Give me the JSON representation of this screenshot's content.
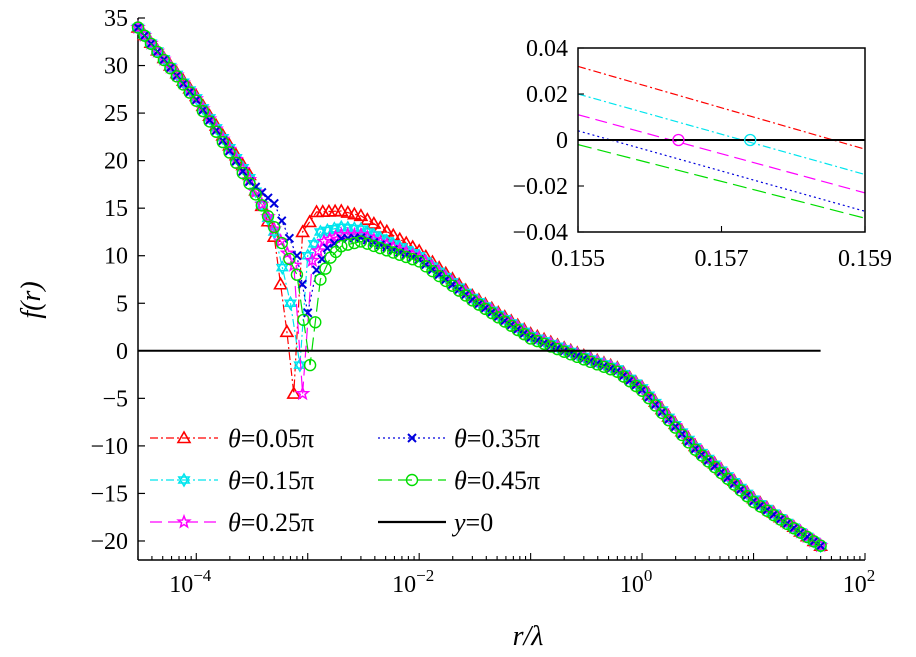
{
  "chart_data": {
    "type": "line",
    "xscale": "log",
    "xlabel": "r/λ",
    "ylabel": "f(r)",
    "xlim": [
      3e-05,
      100
    ],
    "ylim": [
      -22,
      35
    ],
    "xticks": [
      0.0001,
      0.01,
      1,
      100
    ],
    "xtick_labels": [
      "10",
      "10",
      "10",
      "10"
    ],
    "xtick_exps": [
      "−4",
      "−2",
      "0",
      "2"
    ],
    "yticks": [
      35,
      30,
      25,
      20,
      15,
      10,
      5,
      0,
      -5,
      -10,
      -15,
      -20
    ],
    "ytick_labels": [
      "35",
      "30",
      "25",
      "20",
      "15",
      "10",
      "5",
      "0",
      "−5",
      "−10",
      "−15",
      "−20"
    ],
    "grid": false,
    "legend_position": "bottom-left",
    "series": [
      {
        "name": "θ=0.05π",
        "color": "#ff0000",
        "marker": "triangle",
        "dash": "8 3 2 3",
        "x": [
          3e-05,
          0.0001,
          0.0003,
          0.0005,
          0.00065,
          0.00075,
          0.0009,
          0.0012,
          0.002,
          0.003,
          0.01,
          0.03,
          0.1,
          0.2,
          0.3,
          0.6,
          1,
          3,
          10,
          40
        ],
        "y": [
          34,
          26.8,
          18.5,
          12,
          2,
          -4.5,
          12.5,
          14.6,
          14.7,
          14.2,
          10.5,
          5.8,
          1.8,
          0.3,
          -0.5,
          -1.8,
          -3.8,
          -10,
          -15.5,
          -20.5
        ]
      },
      {
        "name": "θ=0.15π",
        "color": "#00e5ee",
        "marker": "star6",
        "dash": "8 3 2 3",
        "x": [
          3e-05,
          0.0001,
          0.0003,
          0.0005,
          0.0007,
          0.00085,
          0.001,
          0.0013,
          0.002,
          0.003,
          0.01,
          0.03,
          0.1,
          0.2,
          0.3,
          0.6,
          1,
          3,
          10,
          40
        ],
        "y": [
          34,
          26.6,
          18.2,
          12.5,
          5,
          -1.5,
          10,
          12.5,
          13,
          12.8,
          10,
          5.6,
          1.6,
          0.2,
          -0.6,
          -1.9,
          -3.9,
          -10.1,
          -15.6,
          -20.5
        ]
      },
      {
        "name": "θ=0.25π",
        "color": "#ff00ff",
        "marker": "star5",
        "dash": "12 6",
        "x": [
          3e-05,
          0.0001,
          0.0003,
          0.0005,
          0.00075,
          0.0009,
          0.0011,
          0.0014,
          0.002,
          0.003,
          0.01,
          0.03,
          0.1,
          0.2,
          0.3,
          0.6,
          1,
          3,
          10,
          40
        ],
        "y": [
          34,
          26.5,
          18,
          12.8,
          9,
          -4.5,
          9.5,
          11.5,
          12.2,
          12.2,
          9.8,
          5.5,
          1.5,
          0.1,
          -0.7,
          -2,
          -4,
          -10.2,
          -15.7,
          -20.5
        ]
      },
      {
        "name": "θ=0.35π",
        "color": "#0000dd",
        "marker": "x",
        "dash": "2 3",
        "x": [
          3e-05,
          0.0001,
          0.0003,
          0.0005,
          0.0008,
          0.001,
          0.0012,
          0.0015,
          0.002,
          0.003,
          0.01,
          0.03,
          0.1,
          0.2,
          0.3,
          0.6,
          1,
          3,
          10,
          40
        ],
        "y": [
          34,
          26.4,
          17.8,
          15.5,
          10,
          4,
          8.5,
          10.8,
          11.8,
          11.9,
          9.6,
          5.4,
          1.4,
          0,
          -0.8,
          -2.1,
          -4.1,
          -10.3,
          -15.8,
          -20.5
        ]
      },
      {
        "name": "θ=0.45π",
        "color": "#00dd00",
        "marker": "circle",
        "dash": "14 6",
        "x": [
          3e-05,
          0.0001,
          0.0003,
          0.0005,
          0.0008,
          0.00105,
          0.0013,
          0.0016,
          0.002,
          0.003,
          0.01,
          0.03,
          0.1,
          0.2,
          0.3,
          0.6,
          1,
          3,
          10,
          40
        ],
        "y": [
          34,
          26.3,
          17.6,
          13,
          8,
          -1.5,
          7.5,
          9.8,
          11,
          11.5,
          9.4,
          5.3,
          1.3,
          -0.1,
          -0.9,
          -2.2,
          -4.2,
          -10.4,
          -15.9,
          -20.5
        ]
      },
      {
        "name": "y=0",
        "color": "#000000",
        "marker": "none",
        "dash": "",
        "x": [
          3e-05,
          40
        ],
        "y": [
          0,
          0
        ]
      }
    ],
    "inset": {
      "xlim": [
        0.155,
        0.159
      ],
      "ylim": [
        -0.04,
        0.04
      ],
      "xticks": [
        0.155,
        0.157,
        0.159
      ],
      "xtick_labels": [
        "0.155",
        "0.157",
        "0.159"
      ],
      "yticks": [
        0.04,
        0.02,
        0,
        -0.02,
        -0.04
      ],
      "ytick_labels": [
        "0.04",
        "0.02",
        "0",
        "−0.02",
        "−0.04"
      ],
      "series": [
        {
          "color": "#ff0000",
          "dash": "8 3 2 3",
          "x": [
            0.155,
            0.159
          ],
          "y": [
            0.032,
            -0.004
          ]
        },
        {
          "color": "#00e5ee",
          "dash": "8 3 2 3",
          "x": [
            0.155,
            0.159
          ],
          "y": [
            0.02,
            -0.015
          ]
        },
        {
          "color": "#ff00ff",
          "dash": "12 6",
          "x": [
            0.155,
            0.159
          ],
          "y": [
            0.011,
            -0.023
          ]
        },
        {
          "color": "#0000dd",
          "dash": "2 3",
          "x": [
            0.155,
            0.159
          ],
          "y": [
            0.004,
            -0.031
          ]
        },
        {
          "color": "#00dd00",
          "dash": "14 6",
          "x": [
            0.155,
            0.159
          ],
          "y": [
            -0.002,
            -0.034
          ]
        },
        {
          "color": "#000000",
          "dash": "",
          "x": [
            0.155,
            0.159
          ],
          "y": [
            0,
            0
          ]
        }
      ],
      "zero_crossings": [
        {
          "color": "#ff00ff",
          "x": 0.1564,
          "y": 0
        },
        {
          "color": "#00e5ee",
          "x": 0.1574,
          "y": 0
        }
      ]
    }
  }
}
